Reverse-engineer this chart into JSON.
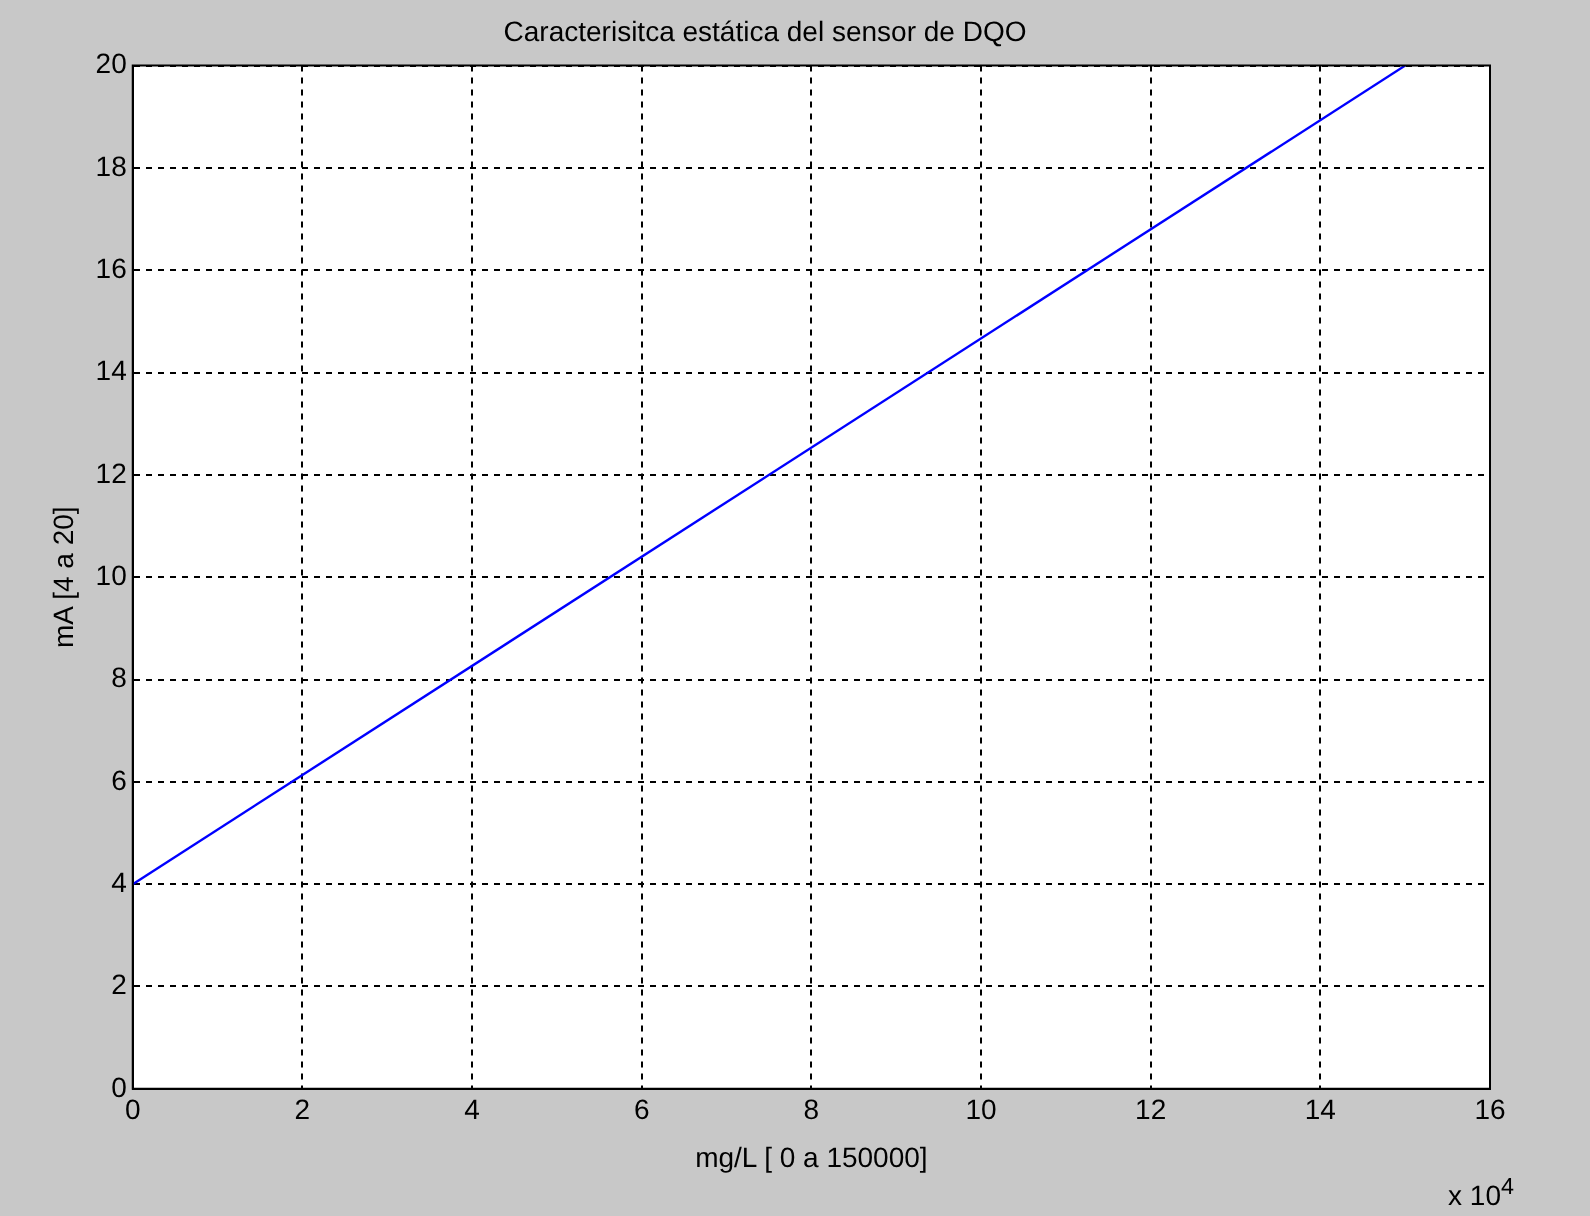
{
  "chart_data": {
    "type": "line",
    "title": "Caracterisitca estática del sensor de DQO",
    "xlabel": "mg/L [ 0 a 150000]",
    "ylabel": "mA [4 a 20]",
    "x": [
      0,
      15
    ],
    "series": [
      {
        "color": "#0000ff",
        "values": [
          4,
          20
        ]
      }
    ],
    "xlim": [
      0,
      16
    ],
    "xticks": [
      0,
      2,
      4,
      6,
      8,
      10,
      12,
      14,
      16
    ],
    "ylim": [
      0,
      20
    ],
    "yticks": [
      0,
      2,
      4,
      6,
      8,
      10,
      12,
      14,
      16,
      18,
      20
    ],
    "grid": true,
    "legend": false,
    "marker": "none",
    "line_style": "solid",
    "annotations": [
      "x 10$^{4}$"
    ]
  }
}
